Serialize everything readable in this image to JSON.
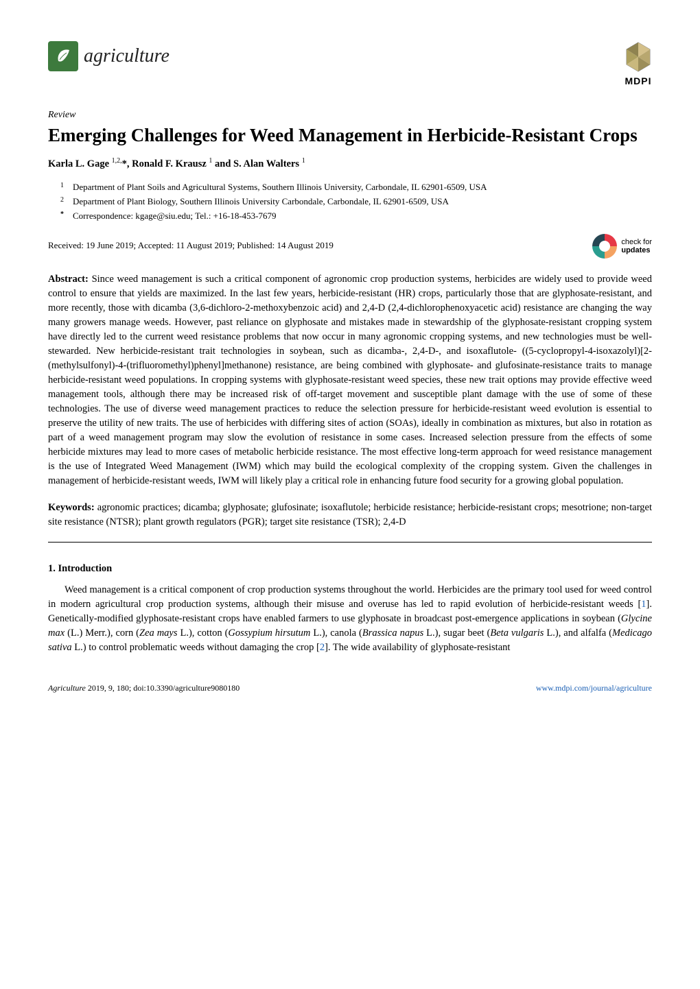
{
  "journal": {
    "name": "agriculture",
    "logo_bg_color": "#3d7a3d",
    "logo_leaf_color": "#ffffff"
  },
  "publisher": {
    "name": "MDPI",
    "hex_colors": [
      "#d4c08a",
      "#b8a76f",
      "#9c8e5a",
      "#c9b87d",
      "#ada05f",
      "#8f8350"
    ]
  },
  "article": {
    "type": "Review",
    "title": "Emerging Challenges for Weed Management in Herbicide-Resistant Crops",
    "authors_html": "Karla L. Gage <sup>1,2,</sup>*, Ronald F. Krausz <sup>1</sup> and S. Alan Walters <sup>1</sup>",
    "affiliations": [
      {
        "num": "1",
        "text": "Department of Plant Soils and Agricultural Systems, Southern Illinois University, Carbondale, IL 62901-6509, USA"
      },
      {
        "num": "2",
        "text": "Department of Plant Biology, Southern Illinois University Carbondale, Carbondale, IL 62901-6509, USA"
      },
      {
        "num": "*",
        "text": "Correspondence: kgage@siu.edu; Tel.: +16-18-453-7679"
      }
    ],
    "dates": "Received: 19 June 2019; Accepted: 11 August 2019; Published: 14 August 2019",
    "check_updates": {
      "line1": "check for",
      "line2": "updates"
    }
  },
  "abstract": {
    "label": "Abstract:",
    "text": "Since weed management is such a critical component of agronomic crop production systems, herbicides are widely used to provide weed control to ensure that yields are maximized. In the last few years, herbicide-resistant (HR) crops, particularly those that are glyphosate-resistant, and more recently, those with dicamba (3,6-dichloro-2-methoxybenzoic acid) and 2,4-D (2,4-dichlorophenoxyacetic acid) resistance are changing the way many growers manage weeds. However, past reliance on glyphosate and mistakes made in stewardship of the glyphosate-resistant cropping system have directly led to the current weed resistance problems that now occur in many agronomic cropping systems, and new technologies must be well-stewarded. New herbicide-resistant trait technologies in soybean, such as dicamba-, 2,4-D-, and isoxaflutole- ((5-cyclopropyl-4-isoxazolyl)[2-(methylsulfonyl)-4-(trifluoromethyl)phenyl]methanone) resistance, are being combined with glyphosate- and glufosinate-resistance traits to manage herbicide-resistant weed populations. In cropping systems with glyphosate-resistant weed species, these new trait options may provide effective weed management tools, although there may be increased risk of off-target movement and susceptible plant damage with the use of some of these technologies. The use of diverse weed management practices to reduce the selection pressure for herbicide-resistant weed evolution is essential to preserve the utility of new traits. The use of herbicides with differing sites of action (SOAs), ideally in combination as mixtures, but also in rotation as part of a weed management program may slow the evolution of resistance in some cases. Increased selection pressure from the effects of some herbicide mixtures may lead to more cases of metabolic herbicide resistance. The most effective long-term approach for weed resistance management is the use of Integrated Weed Management (IWM) which may build the ecological complexity of the cropping system. Given the challenges in management of herbicide-resistant weeds, IWM will likely play a critical role in enhancing future food security for a growing global population."
  },
  "keywords": {
    "label": "Keywords:",
    "text": "agronomic practices; dicamba; glyphosate; glufosinate; isoxaflutole; herbicide resistance; herbicide-resistant crops; mesotrione; non-target site resistance (NTSR); plant growth regulators (PGR); target site resistance (TSR); 2,4-D"
  },
  "section1": {
    "heading": "1. Introduction",
    "para1_pre": "Weed management is a critical component of crop production systems throughout the world. Herbicides are the primary tool used for weed control in modern agricultural crop production systems, although their misuse and overuse has led to rapid evolution of herbicide-resistant weeds [",
    "cite1": "1",
    "para1_mid": "]. Genetically-modified glyphosate-resistant crops have enabled farmers to use glyphosate in broadcast post-emergence applications in soybean (",
    "italic1": "Glycine max",
    "para1_mid2": " (L.) Merr.), corn (",
    "italic2": "Zea mays",
    "para1_mid3": " L.), cotton (",
    "italic3": "Gossypium hirsutum",
    "para1_mid4": " L.), canola (",
    "italic4": "Brassica napus",
    "para1_mid5": " L.), sugar beet (",
    "italic5": "Beta vulgaris",
    "para1_mid6": " L.), and alfalfa (",
    "italic6": "Medicago sativa",
    "para1_mid7": " L.) to control problematic weeds without damaging the crop [",
    "cite2": "2",
    "para1_end": "]. The wide availability of glyphosate-resistant"
  },
  "footer": {
    "left_journal": "Agriculture",
    "left_rest": " 2019, 9, 180; doi:10.3390/agriculture9080180",
    "right": "www.mdpi.com/journal/agriculture"
  },
  "colors": {
    "link": "#1a5fb4",
    "text": "#000000",
    "bg": "#ffffff"
  }
}
